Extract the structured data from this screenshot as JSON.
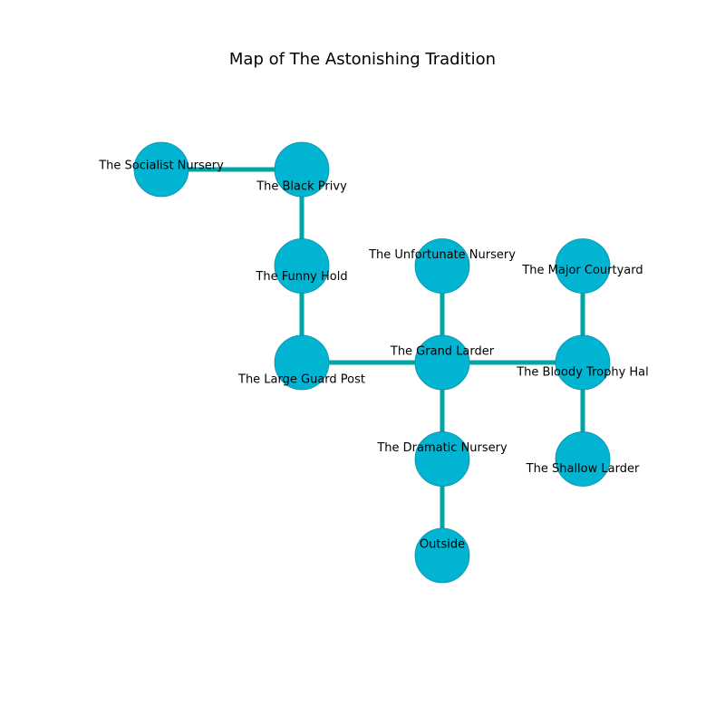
{
  "title": "Map of The Astonishing Tradition",
  "colors": {
    "node_fill": "#00b4d2",
    "node_stroke": "#0a8fa8",
    "edge": "#00a6a6",
    "label": "#000000"
  },
  "rooms": [
    {
      "id": "socialist-nursery",
      "label": "The Socialist Nursery",
      "grid": [
        0,
        0
      ]
    },
    {
      "id": "black-privy",
      "label": "The Black Privy",
      "grid": [
        1,
        0
      ]
    },
    {
      "id": "funny-hold",
      "label": "The Funny Hold",
      "grid": [
        1,
        1
      ]
    },
    {
      "id": "large-guard-post",
      "label": "The Large Guard Post",
      "grid": [
        1,
        2
      ]
    },
    {
      "id": "unfortunate-nursery",
      "label": "The Unfortunate Nursery",
      "grid": [
        2,
        1
      ]
    },
    {
      "id": "grand-larder",
      "label": "The Grand Larder",
      "grid": [
        2,
        2
      ]
    },
    {
      "id": "dramatic-nursery",
      "label": "The Dramatic Nursery",
      "grid": [
        2,
        3
      ]
    },
    {
      "id": "outside",
      "label": "Outside",
      "grid": [
        2,
        4
      ]
    },
    {
      "id": "major-courtyard",
      "label": "The Major Courtyard",
      "grid": [
        3,
        1
      ]
    },
    {
      "id": "bloody-trophy-hall",
      "label": "The Bloody Trophy Hal",
      "grid": [
        3,
        2
      ]
    },
    {
      "id": "shallow-larder",
      "label": "The Shallow Larder",
      "grid": [
        3,
        3
      ]
    }
  ],
  "connections": [
    [
      "socialist-nursery",
      "black-privy"
    ],
    [
      "black-privy",
      "funny-hold"
    ],
    [
      "funny-hold",
      "large-guard-post"
    ],
    [
      "large-guard-post",
      "grand-larder"
    ],
    [
      "unfortunate-nursery",
      "grand-larder"
    ],
    [
      "grand-larder",
      "dramatic-nursery"
    ],
    [
      "dramatic-nursery",
      "outside"
    ],
    [
      "grand-larder",
      "bloody-trophy-hall"
    ],
    [
      "major-courtyard",
      "bloody-trophy-hall"
    ],
    [
      "bloody-trophy-hall",
      "shallow-larder"
    ]
  ]
}
